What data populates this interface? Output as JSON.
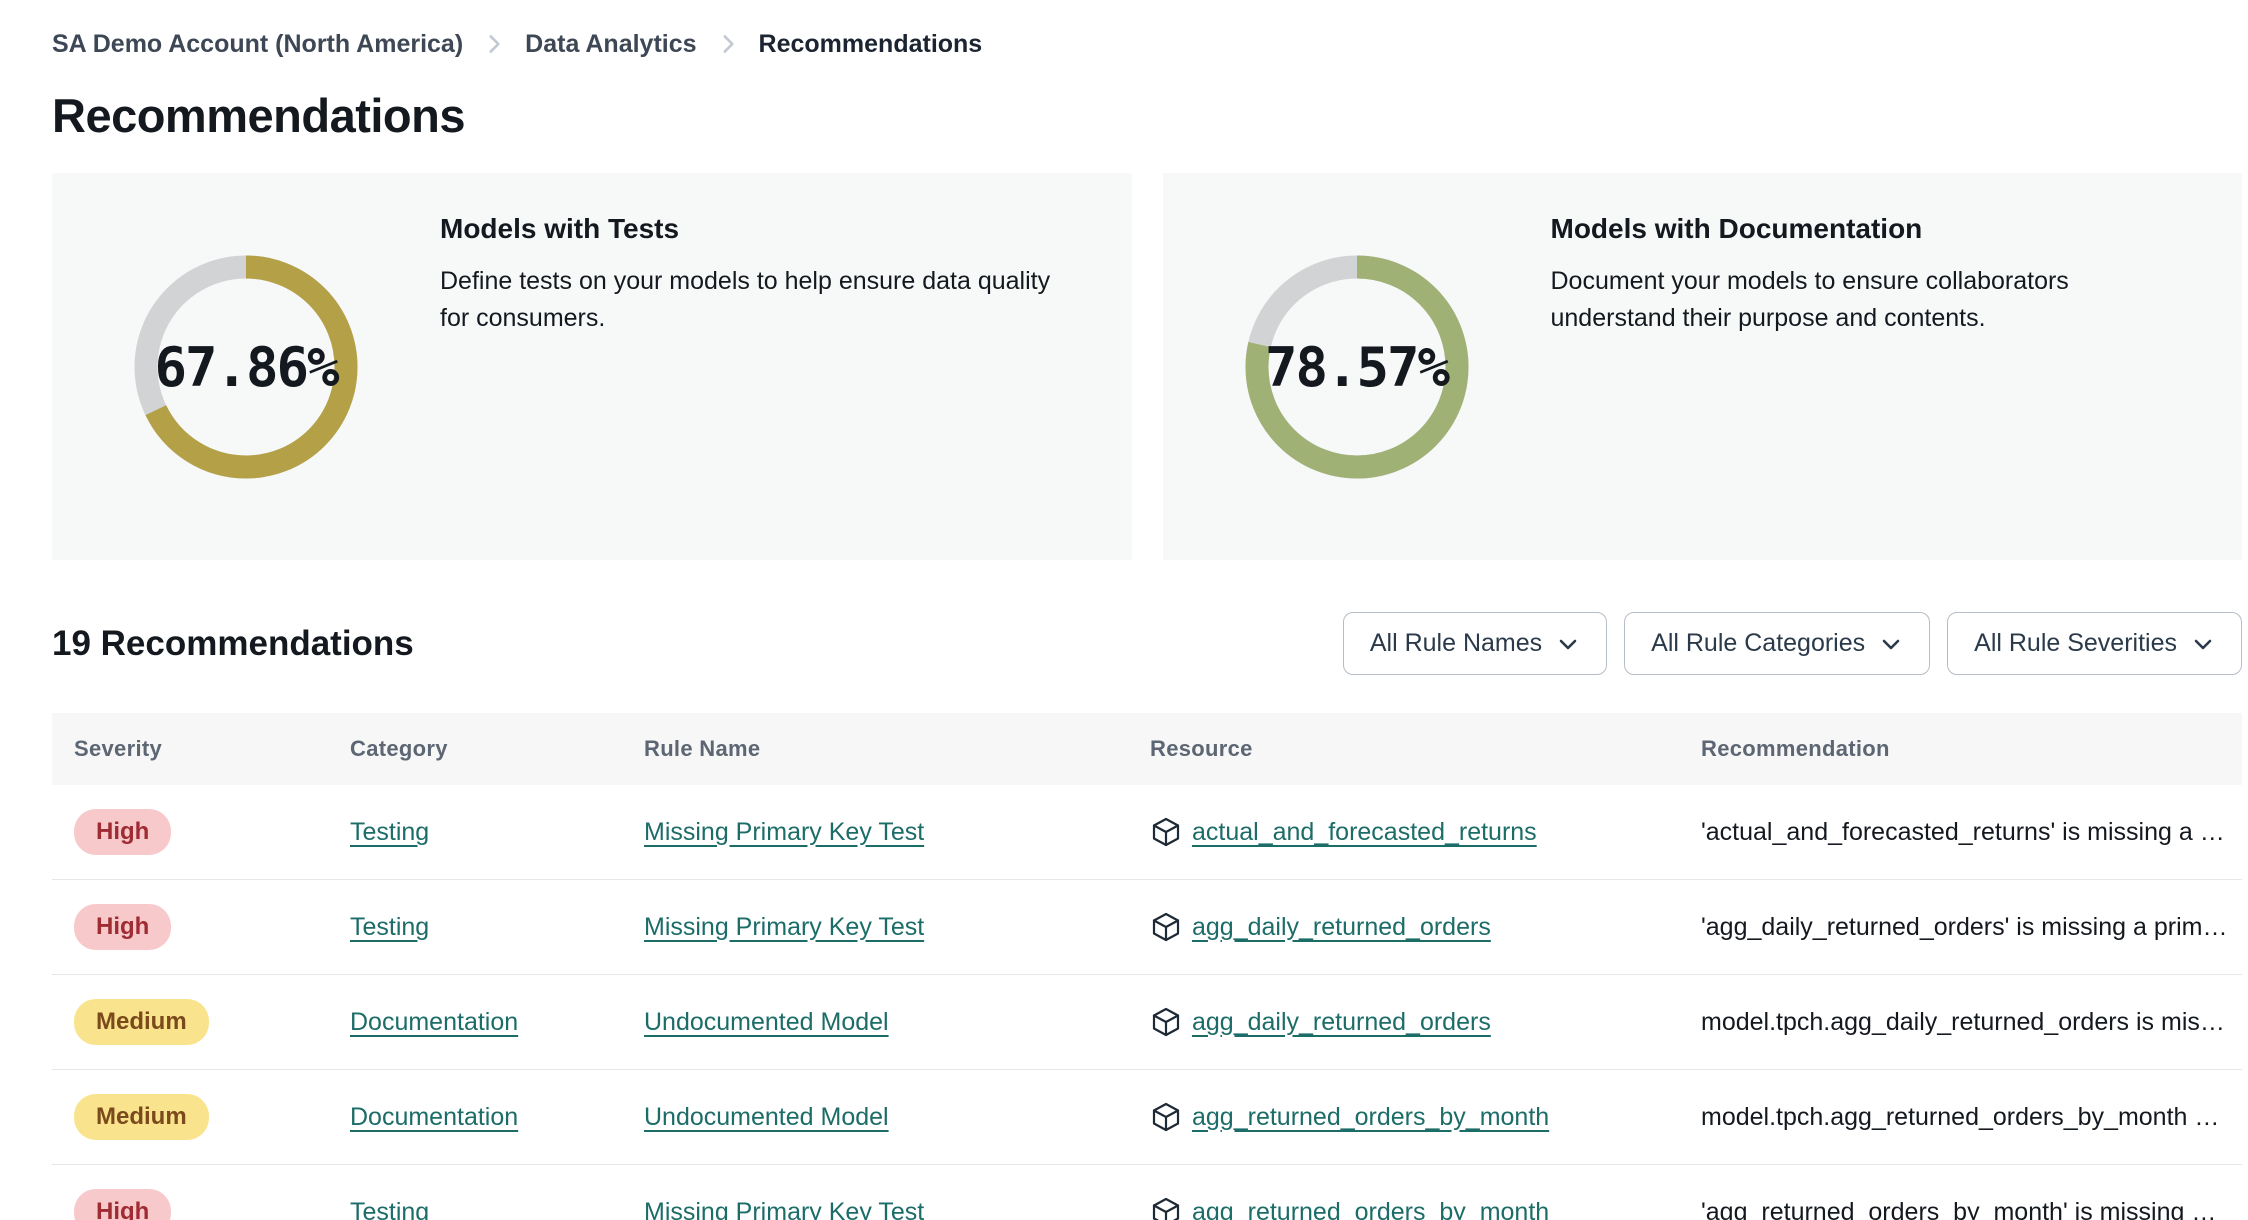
{
  "breadcrumb": {
    "items": [
      {
        "label": "SA Demo Account (North America)"
      },
      {
        "label": "Data Analytics"
      },
      {
        "label": "Recommendations"
      }
    ]
  },
  "page": {
    "title": "Recommendations"
  },
  "cards": [
    {
      "title": "Models with Tests",
      "description": "Define tests on your models to help ensure data quality for consumers.",
      "percent": 67.86,
      "percent_label": "67.86%",
      "ring_color": "#b4a046",
      "track_color": "#d2d3d5"
    },
    {
      "title": "Models with Documentation",
      "description": "Document your models to ensure collaborators understand their purpose and contents.",
      "percent": 78.57,
      "percent_label": "78.57%",
      "ring_color": "#a0b176",
      "track_color": "#d2d3d5"
    }
  ],
  "list": {
    "heading": "19 Recommendations",
    "filters": [
      {
        "label": "All Rule Names"
      },
      {
        "label": "All Rule Categories"
      },
      {
        "label": "All Rule Severities"
      }
    ],
    "table": {
      "columns": [
        "Severity",
        "Category",
        "Rule Name",
        "Resource",
        "Recommendation"
      ],
      "rows": [
        {
          "severity": "High",
          "category": "Testing",
          "rule_name": "Missing Primary Key Test",
          "resource": "actual_and_forecasted_returns",
          "recommendation": "'actual_and_forecasted_returns' is missing a …"
        },
        {
          "severity": "High",
          "category": "Testing",
          "rule_name": "Missing Primary Key Test",
          "resource": "agg_daily_returned_orders",
          "recommendation": "'agg_daily_returned_orders' is missing a prim…"
        },
        {
          "severity": "Medium",
          "category": "Documentation",
          "rule_name": "Undocumented Model",
          "resource": "agg_daily_returned_orders",
          "recommendation": "model.tpch.agg_daily_returned_orders is mis…"
        },
        {
          "severity": "Medium",
          "category": "Documentation",
          "rule_name": "Undocumented Model",
          "resource": "agg_returned_orders_by_month",
          "recommendation": "model.tpch.agg_returned_orders_by_month …"
        },
        {
          "severity": "High",
          "category": "Testing",
          "rule_name": "Missing Primary Key Test",
          "resource": "agg_returned_orders_by_month",
          "recommendation": "'agg_returned_orders_by_month' is missing …"
        }
      ]
    }
  },
  "colors": {
    "link_teal": "#1c6c68",
    "high_bg": "#f8c9ca",
    "high_text": "#9f2b33",
    "medium_bg": "#f9e48d",
    "medium_text": "#7b4a1c",
    "card_bg": "#f7f8f8",
    "header_bg": "#f7f7f8"
  }
}
